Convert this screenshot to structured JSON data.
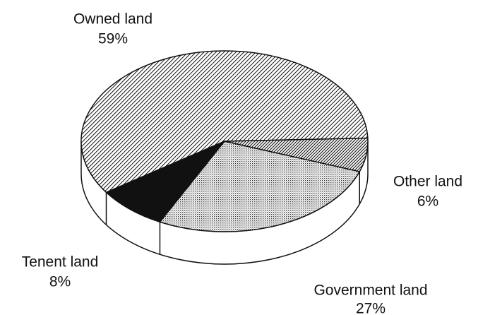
{
  "chart_data": {
    "type": "pie",
    "categories": [
      "Owned land",
      "Tenent land",
      "Government land",
      "Other land"
    ],
    "values": [
      59,
      8,
      27,
      6
    ],
    "value_labels": [
      "59%",
      "8%",
      "27%",
      "6%"
    ]
  }
}
